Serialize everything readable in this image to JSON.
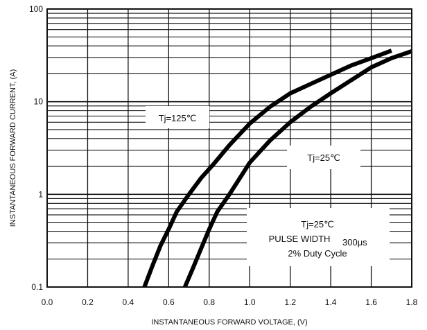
{
  "chart_data": {
    "type": "line",
    "title": "",
    "xlabel": "INSTANTANEOUS FORWARD VOLTAGE, (V)",
    "ylabel": "INSTANTANEOUS FORWARD CURRENT, (A)",
    "xlim": [
      0.0,
      1.8
    ],
    "ylim": [
      0.1,
      100
    ],
    "y_scale": "log",
    "grid": true,
    "x_ticks": [
      "0.0",
      "0.2",
      "0.4",
      "0.6",
      "0.8",
      "1.0",
      "1.2",
      "1.4",
      "1.6",
      "1.8"
    ],
    "y_ticks": [
      "0.1",
      "1",
      "10",
      "100"
    ],
    "series": [
      {
        "name": "Tj=125℃",
        "x": [
          0.48,
          0.52,
          0.56,
          0.6,
          0.64,
          0.7,
          0.76,
          0.82,
          0.9,
          1.0,
          1.1,
          1.2,
          1.3,
          1.4,
          1.5,
          1.6,
          1.7
        ],
        "y": [
          0.1,
          0.17,
          0.28,
          0.42,
          0.65,
          1.0,
          1.5,
          2.1,
          3.4,
          5.8,
          8.8,
          12.3,
          15.5,
          19.5,
          24.5,
          29.5,
          35.5
        ]
      },
      {
        "name": "Tj=25℃",
        "x": [
          0.68,
          0.72,
          0.76,
          0.8,
          0.84,
          0.9,
          0.96,
          1.0,
          1.1,
          1.2,
          1.3,
          1.4,
          1.5,
          1.6,
          1.7,
          1.8
        ],
        "y": [
          0.1,
          0.16,
          0.26,
          0.42,
          0.65,
          1.0,
          1.6,
          2.2,
          3.8,
          6.0,
          8.8,
          12.3,
          17.0,
          23.5,
          29.5,
          35.0
        ]
      }
    ],
    "annotations": [
      {
        "id": "tj125",
        "text": "Tj=125℃"
      },
      {
        "id": "tj25",
        "text": "Tj=25℃"
      },
      {
        "id": "note_tj",
        "text": "Tj=25℃"
      },
      {
        "id": "note_pulse",
        "text": "PULSE WIDTH"
      },
      {
        "id": "note_us",
        "text": "300μs"
      },
      {
        "id": "note_duty",
        "text": "2% Duty Cycle"
      }
    ]
  }
}
